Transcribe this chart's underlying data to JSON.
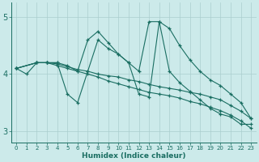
{
  "xlabel": "Humidex (Indice chaleur)",
  "ylabel": "",
  "xlim": [
    -0.5,
    23.5
  ],
  "ylim": [
    2.8,
    5.25
  ],
  "yticks": [
    3,
    4,
    5
  ],
  "xticks": [
    0,
    1,
    2,
    3,
    4,
    5,
    6,
    7,
    8,
    9,
    10,
    11,
    12,
    13,
    14,
    15,
    16,
    17,
    18,
    19,
    20,
    21,
    22,
    23
  ],
  "bg_color": "#cceaea",
  "grid_color": "#aacece",
  "line_color": "#1a6e62",
  "lines": [
    {
      "x": [
        0,
        1,
        2,
        3,
        4,
        5,
        6,
        7,
        8,
        9,
        10,
        11,
        12,
        13,
        14,
        15,
        16,
        17,
        18,
        19,
        20,
        21,
        22,
        23
      ],
      "y": [
        4.1,
        4.0,
        4.2,
        4.2,
        4.2,
        3.65,
        3.5,
        4.05,
        4.6,
        4.45,
        4.35,
        4.2,
        3.65,
        3.6,
        4.92,
        4.05,
        3.85,
        3.7,
        3.55,
        3.4,
        3.3,
        3.25,
        3.12,
        3.12
      ]
    },
    {
      "x": [
        0,
        2,
        3,
        4,
        5,
        6,
        7,
        8,
        9,
        10,
        11,
        12,
        13,
        14,
        15,
        16,
        17,
        18,
        19,
        20,
        21,
        22,
        23
      ],
      "y": [
        4.1,
        4.2,
        4.2,
        4.2,
        4.15,
        4.05,
        4.6,
        4.75,
        4.55,
        4.35,
        4.2,
        4.05,
        4.92,
        4.92,
        4.8,
        4.5,
        4.25,
        4.05,
        3.9,
        3.8,
        3.65,
        3.5,
        3.22
      ]
    },
    {
      "x": [
        0,
        2,
        3,
        4,
        5,
        6,
        7,
        8,
        9,
        10,
        11,
        12,
        13,
        14,
        15,
        16,
        17,
        18,
        19,
        20,
        21,
        22,
        23
      ],
      "y": [
        4.1,
        4.2,
        4.2,
        4.18,
        4.13,
        4.08,
        4.05,
        4.0,
        3.97,
        3.95,
        3.9,
        3.87,
        3.82,
        3.78,
        3.75,
        3.72,
        3.68,
        3.65,
        3.6,
        3.55,
        3.45,
        3.35,
        3.22
      ]
    },
    {
      "x": [
        0,
        2,
        3,
        4,
        5,
        6,
        7,
        8,
        9,
        10,
        11,
        12,
        13,
        14,
        15,
        16,
        17,
        18,
        19,
        20,
        21,
        22,
        23
      ],
      "y": [
        4.1,
        4.2,
        4.2,
        4.15,
        4.1,
        4.05,
        4.0,
        3.95,
        3.88,
        3.83,
        3.78,
        3.73,
        3.68,
        3.65,
        3.62,
        3.58,
        3.52,
        3.48,
        3.42,
        3.36,
        3.28,
        3.18,
        3.05
      ]
    }
  ]
}
